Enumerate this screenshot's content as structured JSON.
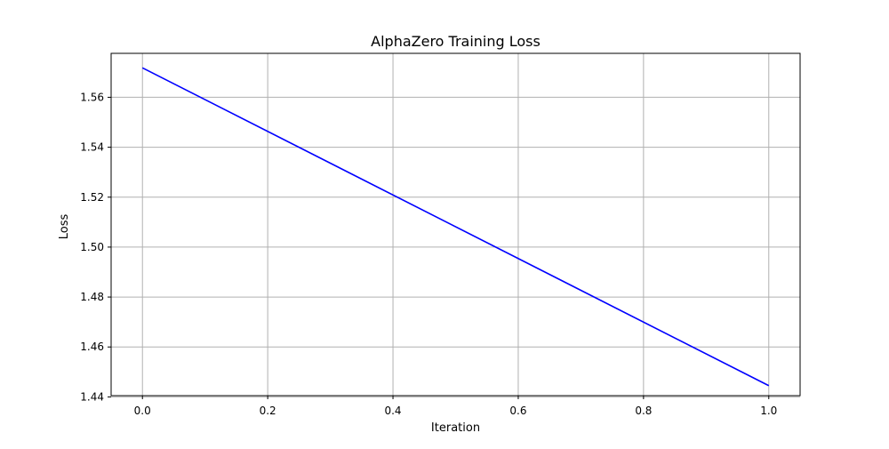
{
  "chart_data": {
    "type": "line",
    "title": "AlphaZero Training Loss",
    "xlabel": "Iteration",
    "ylabel": "Loss",
    "xlim": [
      -0.05,
      1.05
    ],
    "ylim": [
      1.4405,
      1.5776
    ],
    "xticks": [
      0.0,
      0.2,
      0.4,
      0.6,
      0.8,
      1.0
    ],
    "xtick_labels": [
      "0.0",
      "0.2",
      "0.4",
      "0.6",
      "0.8",
      "1.0"
    ],
    "yticks": [
      1.44,
      1.46,
      1.48,
      1.5,
      1.52,
      1.54,
      1.56
    ],
    "ytick_labels": [
      "1.44",
      "1.46",
      "1.48",
      "1.50",
      "1.52",
      "1.54",
      "1.56"
    ],
    "grid": true,
    "series": [
      {
        "color": "#0000ff",
        "x": [
          0.0,
          1.0
        ],
        "values": [
          1.5718,
          1.4445
        ]
      }
    ]
  }
}
